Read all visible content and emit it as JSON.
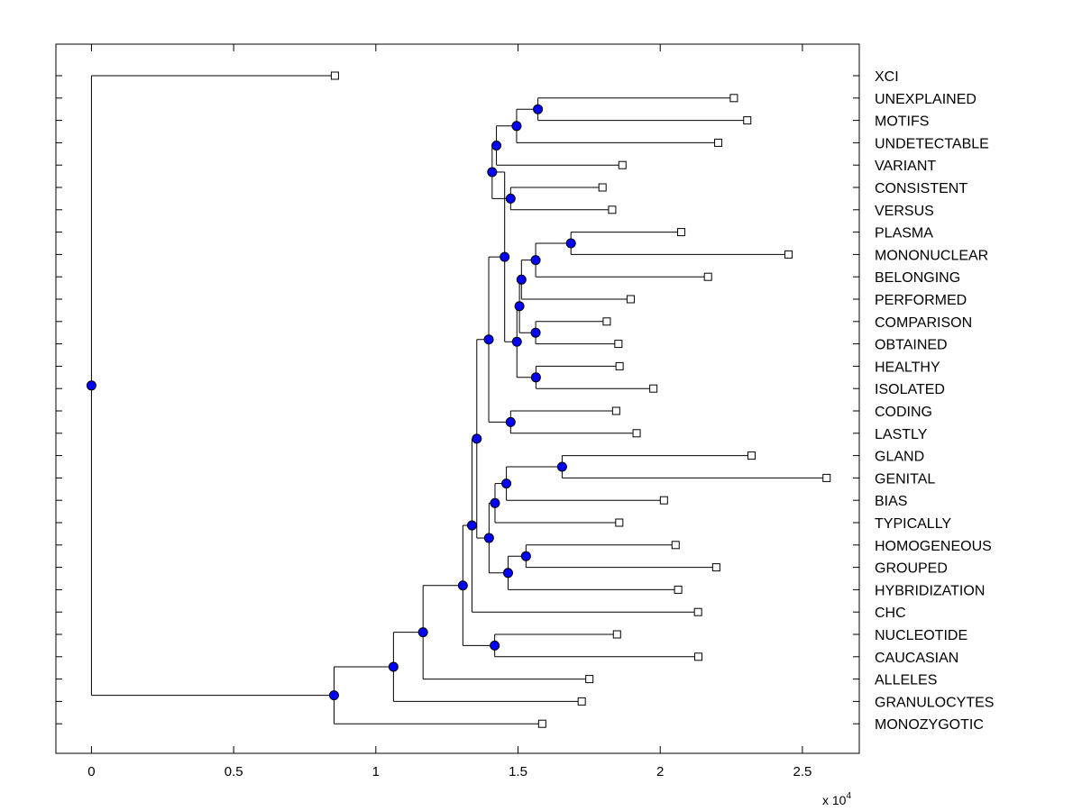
{
  "chart_data": {
    "type": "tree",
    "subtype": "dendrogram",
    "orientation": "horizontal",
    "xlim": [
      -0.125,
      2.7
    ],
    "x_ticks": [
      0,
      0.5,
      1,
      1.5,
      2,
      2.5
    ],
    "x_tick_labels": [
      "0",
      "0.5",
      "1",
      "1.5",
      "2",
      "2.5"
    ],
    "x_exponent_label": "x 10",
    "x_exponent_power": "4",
    "x_multiplier": 10000,
    "leaves": [
      "XCI",
      "UNEXPLAINED",
      "MOTIFS",
      "UNDETECTABLE",
      "VARIANT",
      "CONSISTENT",
      "VERSUS",
      "PLASMA",
      "MONONUCLEAR",
      "BELONGING",
      "PERFORMED",
      "COMPARISON",
      "OBTAINED",
      "HEALTHY",
      "ISOLATED",
      "CODING",
      "LASTLY",
      "GLAND",
      "GENITAL",
      "BIAS",
      "TYPICALLY",
      "HOMOGENEOUS",
      "GROUPED",
      "HYBRIDIZATION",
      "CHC",
      "NUCLEOTIDE",
      "CAUCASIAN",
      "ALLELES",
      "GRANULOCYTES",
      "MONOZYGOTIC"
    ],
    "leaf_values": [
      0.856,
      2.259,
      2.306,
      2.204,
      1.867,
      1.797,
      1.831,
      2.074,
      2.451,
      2.168,
      1.896,
      1.812,
      1.853,
      1.857,
      1.976,
      1.845,
      1.917,
      2.321,
      2.585,
      2.013,
      1.856,
      2.054,
      2.197,
      2.063,
      2.133,
      1.848,
      2.134,
      1.751,
      1.724,
      1.585
    ],
    "internal_nodes": [
      {
        "id": "n1",
        "value": 1.57,
        "children": [
          "UNEXPLAINED",
          "MOTIFS"
        ]
      },
      {
        "id": "n2",
        "value": 1.495,
        "children": [
          "n1",
          "UNDETECTABLE"
        ]
      },
      {
        "id": "n3",
        "value": 1.424,
        "children": [
          "n2",
          "VARIANT"
        ]
      },
      {
        "id": "n4",
        "value": 1.474,
        "children": [
          "CONSISTENT",
          "VERSUS"
        ]
      },
      {
        "id": "n5",
        "value": 1.409,
        "children": [
          "n3",
          "n4"
        ]
      },
      {
        "id": "n6",
        "value": 1.686,
        "children": [
          "PLASMA",
          "MONONUCLEAR"
        ]
      },
      {
        "id": "n7",
        "value": 1.562,
        "children": [
          "n6",
          "BELONGING"
        ]
      },
      {
        "id": "n8",
        "value": 1.512,
        "children": [
          "n7",
          "PERFORMED"
        ]
      },
      {
        "id": "n9",
        "value": 1.562,
        "children": [
          "COMPARISON",
          "OBTAINED"
        ]
      },
      {
        "id": "n10",
        "value": 1.505,
        "children": [
          "n8",
          "n9"
        ]
      },
      {
        "id": "n11",
        "value": 1.563,
        "children": [
          "HEALTHY",
          "ISOLATED"
        ]
      },
      {
        "id": "n12",
        "value": 1.496,
        "children": [
          "n10",
          "n11"
        ]
      },
      {
        "id": "n13",
        "value": 1.453,
        "children": [
          "n5",
          "n12"
        ]
      },
      {
        "id": "n14",
        "value": 1.474,
        "children": [
          "CODING",
          "LASTLY"
        ]
      },
      {
        "id": "n15",
        "value": 1.397,
        "children": [
          "n13",
          "n14"
        ]
      },
      {
        "id": "n16",
        "value": 1.655,
        "children": [
          "GLAND",
          "GENITAL"
        ]
      },
      {
        "id": "n17",
        "value": 1.459,
        "children": [
          "n16",
          "BIAS"
        ]
      },
      {
        "id": "n18",
        "value": 1.419,
        "children": [
          "n17",
          "TYPICALLY"
        ]
      },
      {
        "id": "n19",
        "value": 1.528,
        "children": [
          "HOMOGENEOUS",
          "GROUPED"
        ]
      },
      {
        "id": "n20",
        "value": 1.465,
        "children": [
          "n19",
          "HYBRIDIZATION"
        ]
      },
      {
        "id": "n21",
        "value": 1.398,
        "children": [
          "n18",
          "n20"
        ]
      },
      {
        "id": "n22",
        "value": 1.355,
        "children": [
          "n15",
          "n21"
        ]
      },
      {
        "id": "n23",
        "value": 1.338,
        "children": [
          "n22",
          "CHC"
        ]
      },
      {
        "id": "n24",
        "value": 1.418,
        "children": [
          "NUCLEOTIDE",
          "CAUCASIAN"
        ]
      },
      {
        "id": "n25",
        "value": 1.306,
        "children": [
          "n23",
          "n24"
        ]
      },
      {
        "id": "n26",
        "value": 1.166,
        "children": [
          "n25",
          "ALLELES"
        ]
      },
      {
        "id": "n27",
        "value": 1.062,
        "children": [
          "n26",
          "GRANULOCYTES"
        ]
      },
      {
        "id": "n28",
        "value": 0.853,
        "children": [
          "n27",
          "MONOZYGOTIC"
        ]
      },
      {
        "id": "root",
        "value": 0.0,
        "children": [
          "XCI",
          "n28"
        ]
      }
    ],
    "colors": {
      "internal_node": "#0000ff",
      "leaf_node": "#ffffff",
      "line": "#000000"
    }
  }
}
